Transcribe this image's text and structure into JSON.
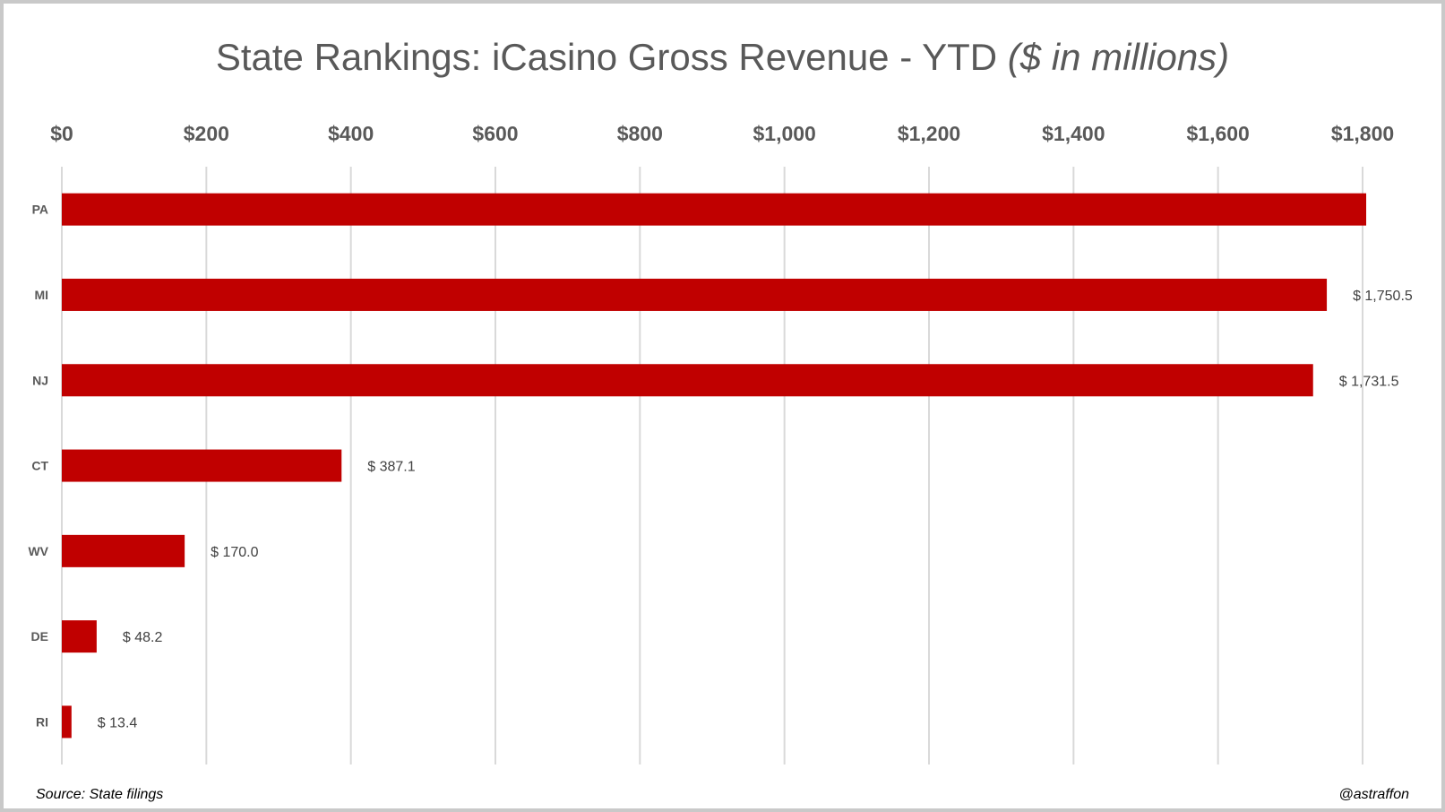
{
  "chart_data": {
    "type": "bar",
    "orientation": "horizontal",
    "title_main": "State Rankings: iCasino Gross Revenue - YTD",
    "title_unit": "($ in millions)",
    "categories": [
      "PA",
      "MI",
      "NJ",
      "CT",
      "WV",
      "DE",
      "RI"
    ],
    "values": [
      1805,
      1750.5,
      1731.5,
      387.1,
      170.0,
      48.2,
      13.4
    ],
    "data_labels": [
      "",
      "$ 1,750.5",
      "$ 1,731.5",
      "$ 387.1",
      "$ 170.0",
      "$ 48.2",
      "$ 13.4"
    ],
    "x_ticks": [
      "$0",
      "$200",
      "$400",
      "$600",
      "$800",
      "$1,000",
      "$1,200",
      "$1,400",
      "$1,600",
      "$1,800"
    ],
    "xlim": [
      0,
      1800
    ],
    "axis_position": "top",
    "grid": true,
    "bar_color": "#c00000",
    "grid_color": "#d9d9d9"
  },
  "footer": {
    "source": "Source: State filings",
    "handle": "@astraffon"
  }
}
